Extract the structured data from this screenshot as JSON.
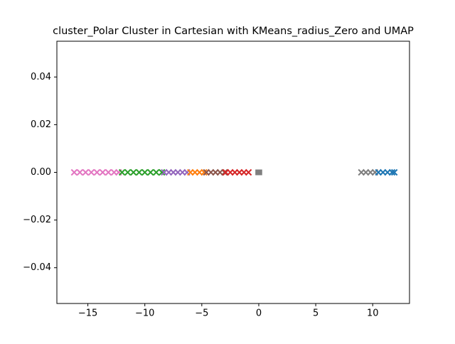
{
  "chart_data": {
    "type": "scatter",
    "title": "cluster_Polar Cluster in Cartesian with KMeans_radius_Zero and UMAP",
    "xlim": [
      -17.72,
      13.23
    ],
    "ylim": [
      -0.055,
      0.055
    ],
    "xticks": [
      {
        "value": -15,
        "label": "−15"
      },
      {
        "value": -10,
        "label": "−10"
      },
      {
        "value": -5,
        "label": "−5"
      },
      0,
      5,
      10
    ],
    "yticks": [
      {
        "value": -0.04,
        "label": "−0.04"
      },
      {
        "value": -0.02,
        "label": "−0.02"
      },
      {
        "value": 0,
        "label": "0.00"
      },
      0.02,
      0.04
    ],
    "series": [
      {
        "color": "#e377c2",
        "marker": "x",
        "x": [
          -16.2,
          -15.7,
          -15.2,
          -14.7,
          -14.2,
          -13.7,
          -13.2,
          -12.7,
          -12.3
        ],
        "y": [
          0,
          0,
          0,
          0,
          0,
          0,
          0,
          0,
          0
        ]
      },
      {
        "color": "#2ca02c",
        "marker": "x",
        "x": [
          -12.0,
          -11.5,
          -11.0,
          -10.5,
          -10.0,
          -9.5,
          -9.0,
          -8.5
        ],
        "y": [
          0,
          0,
          0,
          0,
          0,
          0,
          0,
          0
        ]
      },
      {
        "color": "#9467bd",
        "marker": "x",
        "x": [
          -8.3,
          -7.9,
          -7.5,
          -7.1,
          -6.7,
          -6.3
        ],
        "y": [
          0,
          0,
          0,
          0,
          0,
          0
        ]
      },
      {
        "color": "#ff7f0e",
        "marker": "x",
        "x": [
          -6.0,
          -5.6,
          -5.2,
          -4.8
        ],
        "y": [
          0,
          0,
          0,
          0
        ]
      },
      {
        "color": "#8c564b",
        "marker": "x",
        "x": [
          -4.6,
          -4.2,
          -3.8,
          -3.4,
          -3.0
        ],
        "y": [
          0,
          0,
          0,
          0,
          0
        ]
      },
      {
        "color": "#d62728",
        "marker": "x",
        "x": [
          -2.9,
          -2.5,
          -2.1,
          -1.7,
          -1.3,
          -0.9
        ],
        "y": [
          0,
          0,
          0,
          0,
          0,
          0
        ]
      },
      {
        "color": "#7f7f7f",
        "marker": "square",
        "x": [
          -0.05,
          0,
          0.05
        ],
        "y": [
          0,
          0,
          0
        ]
      },
      {
        "color": "#7f7f7f",
        "marker": "x",
        "x": [
          9.0,
          9.4,
          9.8,
          10.2
        ],
        "y": [
          0,
          0,
          0,
          0
        ]
      },
      {
        "color": "#1f77b4",
        "marker": "x",
        "x": [
          10.5,
          10.9,
          11.3,
          11.7,
          11.9
        ],
        "y": [
          0,
          0,
          0,
          0,
          0
        ]
      }
    ]
  }
}
